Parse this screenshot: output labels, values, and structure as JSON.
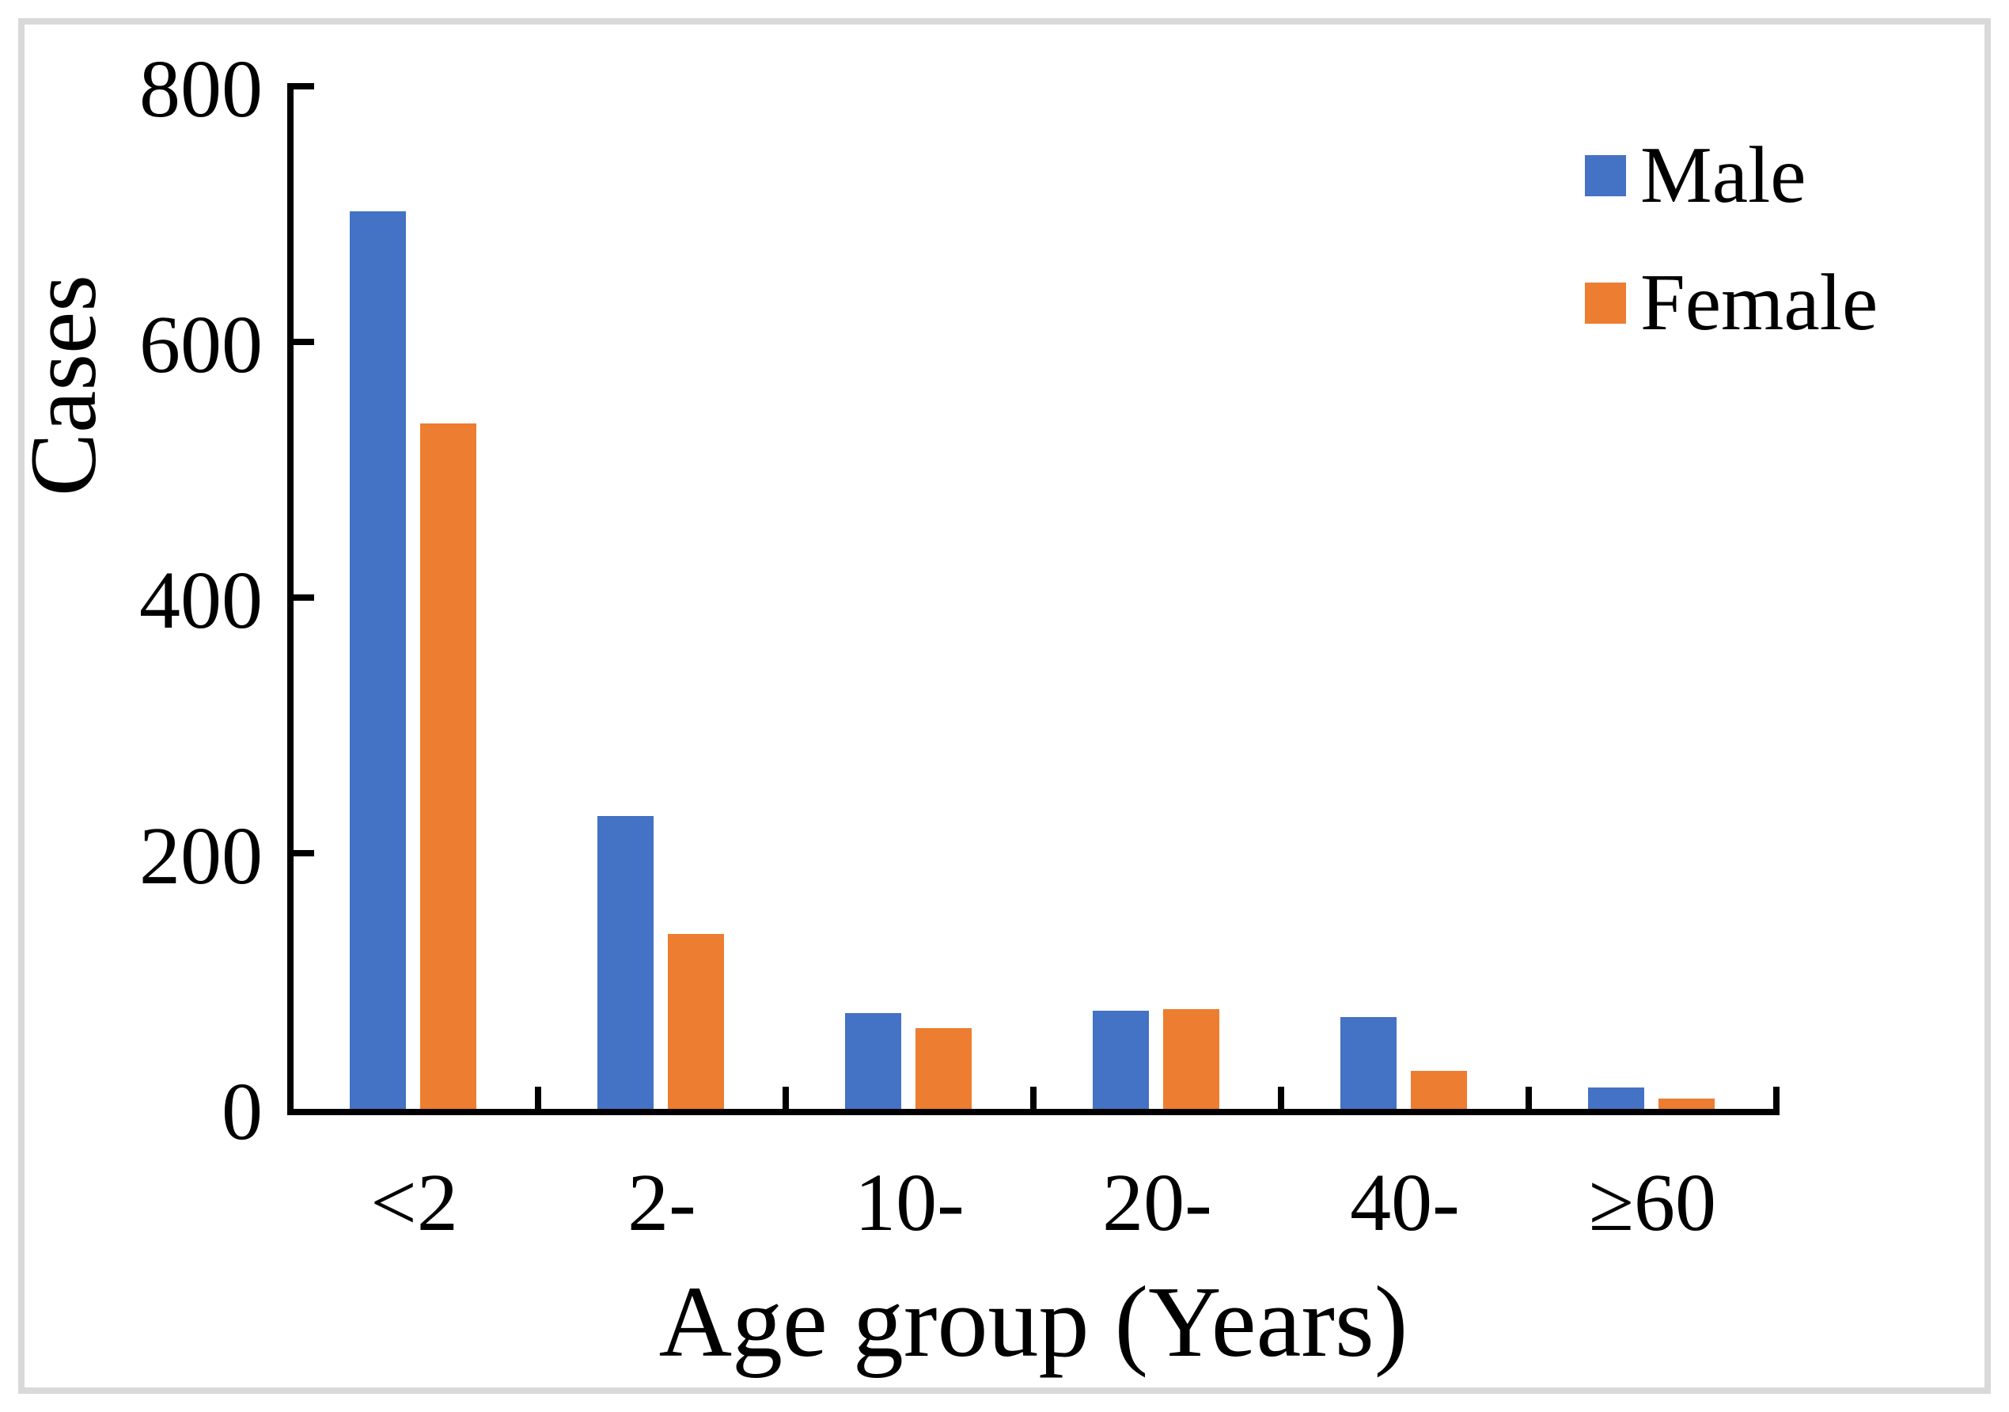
{
  "chart_data": {
    "type": "bar",
    "title": "",
    "categories": [
      "<2",
      "2-",
      "10-",
      "20-",
      "40-",
      "≥60"
    ],
    "series": [
      {
        "name": "Male",
        "color": "#4472C4",
        "values": [
          702,
          229,
          75,
          77,
          72,
          17
        ]
      },
      {
        "name": "Female",
        "color": "#ED7D31",
        "values": [
          536,
          137,
          63,
          78,
          30,
          8
        ]
      }
    ],
    "xlabel": "Age group (Years)",
    "ylabel": "Cases",
    "ylim": [
      0,
      800
    ],
    "yticks": [
      0,
      200,
      400,
      600,
      800
    ],
    "grid": false,
    "legend_position": "top-right",
    "axis_color": "#000000",
    "frame_border_color": "#D9D9D9",
    "background_color": "#FFFFFF"
  }
}
